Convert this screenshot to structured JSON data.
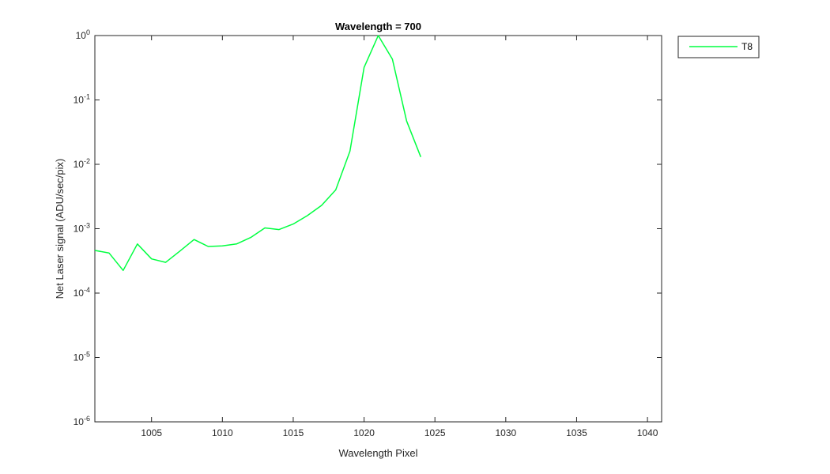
{
  "chart_data": {
    "type": "line",
    "title": "Wavelength = 700",
    "xlabel": "Wavelength Pixel",
    "ylabel": "Net Laser signal  (ADU/sec/pix)",
    "x_scale": "linear",
    "y_scale": "log",
    "xlim": [
      1001,
      1041
    ],
    "ylim": [
      1e-06,
      1
    ],
    "x_ticks": [
      1005,
      1010,
      1015,
      1020,
      1025,
      1030,
      1035,
      1040
    ],
    "y_ticks": [
      {
        "value": 1e-06,
        "mantissa": "10",
        "exponent": "-6"
      },
      {
        "value": 1e-05,
        "mantissa": "10",
        "exponent": "-5"
      },
      {
        "value": 0.0001,
        "mantissa": "10",
        "exponent": "-4"
      },
      {
        "value": 0.001,
        "mantissa": "10",
        "exponent": "-3"
      },
      {
        "value": 0.01,
        "mantissa": "10",
        "exponent": "-2"
      },
      {
        "value": 0.1,
        "mantissa": "10",
        "exponent": "-1"
      },
      {
        "value": 1,
        "mantissa": "10",
        "exponent": "0"
      }
    ],
    "grid": false,
    "legend_position": "outside-top-right",
    "series": [
      {
        "name": "T8",
        "color": "#00ff40",
        "x": [
          1001,
          1002,
          1003,
          1004,
          1005,
          1006,
          1007,
          1008,
          1009,
          1010,
          1011,
          1012,
          1013,
          1014,
          1015,
          1016,
          1017,
          1018,
          1019,
          1020,
          1021,
          1022,
          1023,
          1024
        ],
        "y": [
          0.00046,
          0.00042,
          0.000225,
          0.00058,
          0.00034,
          0.0003,
          0.00045,
          0.00068,
          0.00053,
          0.00054,
          0.00058,
          0.00073,
          0.00103,
          0.00097,
          0.00118,
          0.0016,
          0.0023,
          0.004,
          0.016,
          0.32,
          1.0,
          0.43,
          0.047,
          0.013
        ]
      }
    ]
  }
}
